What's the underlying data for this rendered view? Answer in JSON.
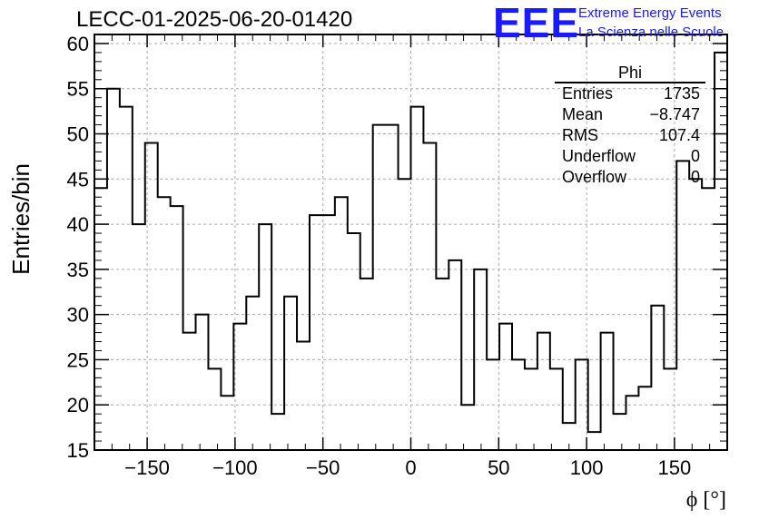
{
  "header": {
    "run_title": "LECC-01-2025-06-20-01420",
    "logo": "EEE",
    "logo_line1": "Extreme Energy Events",
    "logo_line2": "La Scienza nelle Scuole"
  },
  "stats_box": {
    "title": "Phi",
    "rows": [
      {
        "label": "Entries",
        "value": "1735"
      },
      {
        "label": "Mean",
        "value": "−8.747"
      },
      {
        "label": "RMS",
        "value": "107.4"
      },
      {
        "label": "Underflow",
        "value": "0"
      },
      {
        "label": "Overflow",
        "value": "0"
      }
    ]
  },
  "colors": {
    "line": "#000000",
    "grid": "#aaaaaa",
    "logo": "#1a1aff"
  },
  "chart_data": {
    "type": "histogram",
    "title": "LECC-01-2025-06-20-01420",
    "xlabel": "ϕ [°]",
    "ylabel": "Entries/bin",
    "xlim": [
      -180,
      180
    ],
    "ylim": [
      15,
      61
    ],
    "grid": true,
    "bin_width": 7.2,
    "x_ticks": [
      -150,
      -100,
      -50,
      0,
      50,
      100,
      150
    ],
    "x_tick_labels": [
      "−150",
      "−100",
      "−50",
      "0",
      "50",
      "100",
      "150"
    ],
    "y_ticks": [
      15,
      20,
      25,
      30,
      35,
      40,
      45,
      50,
      55,
      60
    ],
    "y_tick_labels": [
      "15",
      "20",
      "25",
      "30",
      "35",
      "40",
      "45",
      "50",
      "55",
      "60"
    ],
    "values": [
      44,
      55,
      53,
      40,
      49,
      43,
      42,
      28,
      30,
      24,
      21,
      29,
      32,
      40,
      19,
      32,
      27,
      41,
      41,
      43,
      39,
      34,
      51,
      51,
      45,
      53,
      49,
      34,
      36,
      20,
      35,
      25,
      29,
      25,
      24,
      28,
      24,
      18,
      25,
      17,
      28,
      19,
      21,
      22,
      31,
      24,
      47,
      45,
      44,
      59
    ]
  }
}
